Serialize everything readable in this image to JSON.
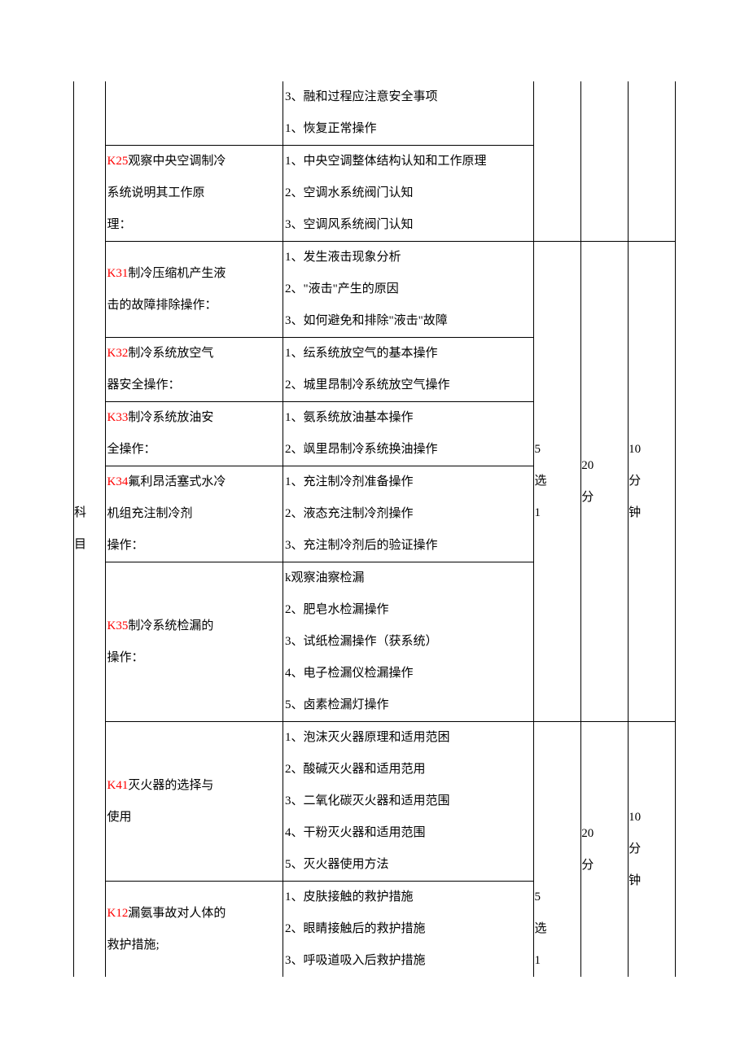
{
  "section_label": {
    "c1": "科",
    "c2": "目"
  },
  "pick_label": {
    "l1": "5",
    "l2": "选",
    "l3": "1"
  },
  "score_label": {
    "l1": "20",
    "l2": "分"
  },
  "time_label": {
    "l1": "10",
    "l2": "分",
    "l3": "钟"
  },
  "group2": {
    "pre": {
      "details": {
        "d1": "3、融和过程应注意安全事项",
        "d2": "1、恢复正常操作"
      }
    },
    "k25": {
      "code": "K25",
      "title_a": "观察中央空调制冷",
      "title_b": "系统说明其工作原",
      "title_c": "理：",
      "details": {
        "d1": "1、中央空调整体结构认知和工作原理",
        "d2": "2、空调水系统阀门认知",
        "d3": "3、空调风系统阀门认知"
      }
    }
  },
  "group3": {
    "k31": {
      "code": "K31",
      "title_a": "制冷压缩机产生液",
      "title_b": "击的故障排除操作：",
      "details": {
        "d1": "1、发生液击现象分析",
        "d2": "2、\"液击\"产生的原因",
        "d3": "3、如何避免和排除\"液击\"故障"
      }
    },
    "k32": {
      "code": "K32",
      "title_a": "制冷系统放空气",
      "title_b": "器安全操作：",
      "details": {
        "d1": "1、纭系统放空气的基本操作",
        "d2": "2、城里昂制冷系统放空气操作"
      }
    },
    "k33": {
      "code": "K33",
      "title_a": "制冷系统放油安",
      "title_b": "全操作：",
      "details": {
        "d1": "1、氨系统放油基本操作",
        "d2": "2、飒里昂制冷系统换油操作"
      }
    },
    "k34": {
      "code": "K34",
      "title_a": "氟利昂活塞式水冷",
      "title_b": "机组充注制冷剂",
      "title_c": "操作：",
      "details": {
        "d1": "1、充注制冷剂准备操作",
        "d2": "2、液态充注制冷剂操作",
        "d3": "3、充注制冷剂后的验证操作"
      }
    },
    "k35": {
      "code": "K35",
      "title_a": "制冷系统检漏的",
      "title_b": "操作：",
      "details": {
        "d1": "k观察油察检漏",
        "d2": "2、肥皂水检漏操作",
        "d3": "3、试纸检漏操作（获系统）",
        "d4": "4、电子检漏仪检漏操作",
        "d5": "5、卤素检漏灯操作"
      }
    }
  },
  "group4": {
    "k41": {
      "code": "K41",
      "title_a": "灭火器的选择与",
      "title_b": "使用",
      "details": {
        "d1": "1、泡沫灭火器原理和适用范困",
        "d2": "2、酸碱灭火器和适用范用",
        "d3": "3、二氧化碳灭火器和适用范围",
        "d4": "4、干粉灭火器和适用范围",
        "d5": "5、灭火器使用方法"
      }
    },
    "k12": {
      "code": "K12",
      "title_a": "漏氨事故对人体的",
      "title_b": "救护措施;",
      "details": {
        "d1": "1、皮肤接触的救护措施",
        "d2": "2、眼睛接触后的救护措施",
        "d3": "3、呼吸道吸入后救护措施"
      }
    }
  }
}
